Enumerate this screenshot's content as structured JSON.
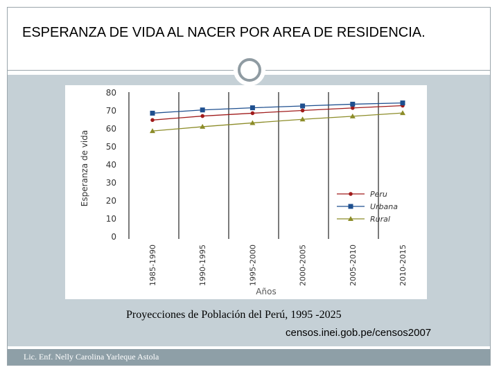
{
  "slide": {
    "title": "ESPERANZA DE VIDA AL NACER POR AREA DE RESIDENCIA.",
    "caption": "Proyecciones de Población del Perú, 1995 -2025",
    "source": "censos.inei.gob.pe/censos2007",
    "footer": "Lic. Enf. Nelly Carolina Yarleque Astola"
  },
  "colors": {
    "peru": "#a01b1b",
    "urbana": "#1e4f8f",
    "rural": "#8c8c28",
    "band": "#c5d0d6",
    "footer": "#8e9fa7"
  },
  "chart_data": {
    "type": "line",
    "title": "",
    "xlabel": "Años",
    "ylabel": "Esperanza de vida",
    "categories": [
      "1985-1990",
      "1990-1995",
      "1995-2000",
      "2000-2005",
      "2005-2010",
      "2010-2015"
    ],
    "ylim": [
      0,
      80
    ],
    "yticks": [
      0,
      10,
      20,
      30,
      40,
      50,
      60,
      70,
      80
    ],
    "legend_position": "bottom-right",
    "series": [
      {
        "name": "Peru",
        "marker": "circle",
        "values": [
          64.5,
          66.7,
          68.3,
          69.8,
          71.2,
          72.5
        ]
      },
      {
        "name": "Urbana",
        "marker": "square",
        "values": [
          68.3,
          70.1,
          71.3,
          72.3,
          73.3,
          74.0
        ]
      },
      {
        "name": "Rural",
        "marker": "triangle",
        "values": [
          58.4,
          60.8,
          62.9,
          64.9,
          66.6,
          68.4
        ]
      }
    ]
  }
}
